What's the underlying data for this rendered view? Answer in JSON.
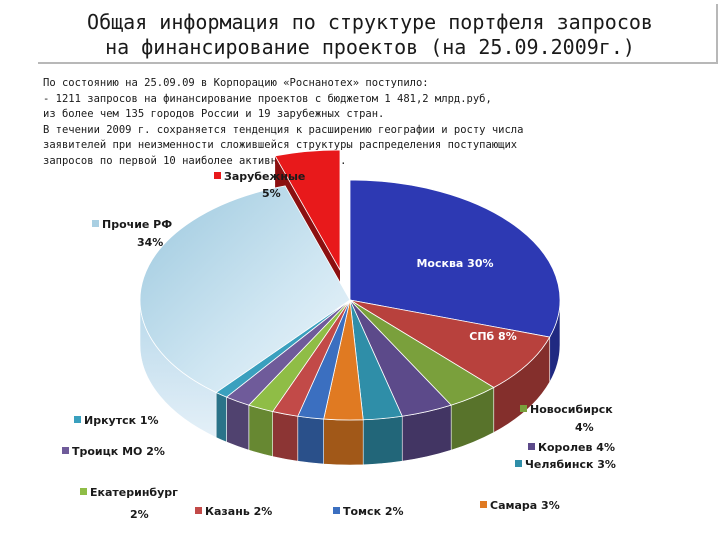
{
  "title": {
    "line1": "Общая информация по структуре портфеля запросов",
    "line2": "на финансирование проектов (на 25.09.2009г.)"
  },
  "info": {
    "lines": [
      "По состоянию на 25.09.09 в Корпорацию «Роснанотех» поступило:",
      "- 1211 запросов на финансирование проектов с бюджетом  1 481,2 млрд.руб,",
      "из более чем 135 городов России и 19 зарубежных стран.",
      "В течении 2009 г. сохраняется тенденция к расширению географии и росту числа",
      "заявителей при неизменности сложившейся структуры распределения поступающих",
      "запросов по первой 10 наиболее активных городов."
    ]
  },
  "chart_data": {
    "type": "pie",
    "title": "",
    "unit": "%",
    "slices": [
      {
        "name": "Москва",
        "label": "Москва 30%",
        "value": 30,
        "color": "#2d39b3"
      },
      {
        "name": "СПб",
        "label": "СПб 8%",
        "value": 8,
        "color": "#b8413d"
      },
      {
        "name": "Новосибирск",
        "label": "Новосибирск",
        "label2": "4%",
        "value": 4,
        "color": "#7aa03c"
      },
      {
        "name": "Королев",
        "label": "Королев 4%",
        "value": 4,
        "color": "#5c4a8a"
      },
      {
        "name": "Челябинск",
        "label": "Челябинск 3%",
        "value": 3,
        "color": "#2f8ea8"
      },
      {
        "name": "Самара",
        "label": "Самара 3%",
        "value": 3,
        "color": "#e07a22"
      },
      {
        "name": "Томск",
        "label": "Томск 2%",
        "value": 2,
        "color": "#3b6fc0"
      },
      {
        "name": "Казань",
        "label": "Казань 2%",
        "value": 2,
        "color": "#c24a48"
      },
      {
        "name": "Екатеринбург",
        "label": "Екатеринбург",
        "label2": "2%",
        "value": 2,
        "color": "#8fbd46"
      },
      {
        "name": "Троицк МО",
        "label": "Троицк МО 2%",
        "value": 2,
        "color": "#6f5b9a"
      },
      {
        "name": "Иркутск",
        "label": "Иркутск 1%",
        "value": 1,
        "color": "#3aa0be"
      },
      {
        "name": "Прочие РФ",
        "label": "Прочие РФ",
        "label2": "34%",
        "value": 34,
        "color": "#a9cfe2"
      },
      {
        "name": "Зарубежные",
        "label": "Зарубежные",
        "label2": "5%",
        "value": 5,
        "color": "#e8191b"
      }
    ],
    "legend": "labels around chart"
  }
}
